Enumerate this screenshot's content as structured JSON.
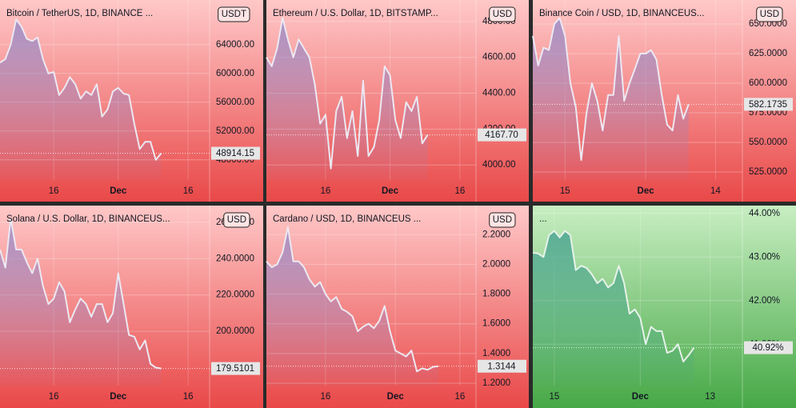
{
  "chart_data": [
    {
      "type": "line",
      "title": "Bitcoin / TetherUS, 1D, BINANCE ...",
      "currency": "USDT",
      "color": "#ece8f2",
      "area_color": "#8f86c8",
      "background": [
        "#ffc8c8",
        "#e94848"
      ],
      "ylim": [
        45200,
        70200
      ],
      "yticks": [
        {
          "value": 48000,
          "label": "48000.00"
        },
        {
          "value": 52000,
          "label": "52000.00"
        },
        {
          "value": 56000,
          "label": "56000.00"
        },
        {
          "value": 60000,
          "label": "60000.00"
        },
        {
          "value": 64000,
          "label": "64000.00"
        }
      ],
      "categories": [
        null,
        null,
        null,
        null,
        null,
        null,
        null,
        null,
        null,
        null,
        "16",
        null,
        null,
        null,
        null,
        null,
        null,
        null,
        null,
        null,
        null,
        null,
        "Dec",
        null,
        null,
        null,
        null,
        null,
        null,
        null,
        null,
        null,
        null,
        null,
        null,
        "16",
        null,
        null,
        null,
        null
      ],
      "values": [
        61500,
        62000,
        64000,
        67500,
        66500,
        64800,
        64500,
        65000,
        62000,
        60000,
        60200,
        57000,
        58000,
        59500,
        58500,
        56500,
        57500,
        57000,
        58500,
        54000,
        55000,
        57500,
        58000,
        57200,
        57000,
        53000,
        49500,
        50500,
        50500,
        48000,
        48914.15,
        null,
        null,
        null,
        null,
        null,
        null,
        null,
        null,
        null
      ]
    },
    {
      "type": "line",
      "title": "Ethereum / U.S. Dollar, 1D, BITSTAMP...",
      "currency": "USD",
      "color": "#ece8f2",
      "area_color": "#8f86c8",
      "background": [
        "#ffc8c8",
        "#e94848"
      ],
      "ylim": [
        3916,
        4920
      ],
      "yticks": [
        {
          "value": 4000,
          "label": "4000.00"
        },
        {
          "value": 4200,
          "label": "4200.00"
        },
        {
          "value": 4400,
          "label": "4400.00"
        },
        {
          "value": 4600,
          "label": "4600.00"
        },
        {
          "value": 4800,
          "label": "4800.00"
        }
      ],
      "categories": [
        null,
        null,
        null,
        null,
        null,
        null,
        null,
        null,
        null,
        null,
        null,
        "16",
        null,
        null,
        null,
        null,
        null,
        null,
        null,
        null,
        null,
        null,
        null,
        "Dec",
        null,
        null,
        null,
        null,
        null,
        null,
        null,
        null,
        null,
        null,
        null,
        null,
        "16",
        null,
        null,
        null
      ],
      "values": [
        4600,
        4550,
        4650,
        4820,
        4700,
        4600,
        4700,
        4650,
        4600,
        4450,
        4230,
        4280,
        3980,
        4300,
        4380,
        4150,
        4300,
        4050,
        4470,
        4050,
        4100,
        4250,
        4550,
        4500,
        4250,
        4150,
        4350,
        4300,
        4380,
        4120,
        4167.7,
        null,
        null,
        null,
        null,
        null,
        null,
        null,
        null,
        null
      ],
      "value_labels": [
        null,
        null,
        null,
        null,
        null,
        null,
        null,
        null,
        null,
        null,
        null,
        null,
        null,
        null,
        null,
        null,
        null,
        null,
        null,
        null,
        null,
        null,
        null,
        null,
        null,
        null,
        null,
        null,
        null,
        null,
        "4167.70",
        null,
        null,
        null,
        null,
        null,
        null,
        null,
        null,
        null
      ]
    },
    {
      "type": "line",
      "title": "Binance Coin / USD, 1D, BINANCEUS...",
      "currency": "USD",
      "color": "#ece8f2",
      "area_color": "#8f86c8",
      "background": [
        "#ffc8c8",
        "#e94848"
      ],
      "ylim": [
        518.2,
        670.3
      ],
      "yticks": [
        {
          "value": 525,
          "label": "525.0000"
        },
        {
          "value": 550,
          "label": "550.0000"
        },
        {
          "value": 575,
          "label": "575.0000"
        },
        {
          "value": 600,
          "label": "600.0000"
        },
        {
          "value": 625,
          "label": "625.0000"
        },
        {
          "value": 650,
          "label": "650.0000"
        }
      ],
      "categories": [
        null,
        null,
        null,
        null,
        null,
        null,
        "15",
        null,
        null,
        null,
        null,
        null,
        null,
        null,
        null,
        null,
        null,
        null,
        null,
        null,
        null,
        "Dec",
        null,
        null,
        null,
        null,
        null,
        null,
        null,
        null,
        null,
        null,
        null,
        null,
        "14",
        null,
        null,
        null,
        null,
        null
      ],
      "values": [
        640,
        615,
        630,
        628,
        650,
        655,
        640,
        600,
        580,
        535,
        575,
        600,
        585,
        560,
        590,
        590,
        640,
        585,
        600,
        612,
        625,
        625,
        628,
        620,
        590,
        565,
        560,
        590,
        570,
        582.1735,
        null,
        null,
        null,
        null,
        null,
        null,
        null,
        null,
        null,
        null
      ]
    },
    {
      "type": "line",
      "title": "Solana / U.S. Dollar, 1D, BINANCEUS...",
      "currency": "USD",
      "color": "#ece8f2",
      "area_color": "#8f86c8",
      "background": [
        "#ffc8c8",
        "#e94848"
      ],
      "ylim": [
        170.1,
        269.2
      ],
      "yticks": [
        {
          "value": 200,
          "label": "200.0000"
        },
        {
          "value": 220,
          "label": "220.0000"
        },
        {
          "value": 240,
          "label": "240.0000"
        },
        {
          "value": 260,
          "label": "260.0000"
        }
      ],
      "categories": [
        null,
        null,
        null,
        null,
        null,
        null,
        null,
        null,
        null,
        null,
        "16",
        null,
        null,
        null,
        null,
        null,
        null,
        null,
        null,
        null,
        null,
        null,
        "Dec",
        null,
        null,
        null,
        null,
        null,
        null,
        null,
        null,
        null,
        null,
        null,
        null,
        "16",
        null,
        null,
        null,
        null
      ],
      "values": [
        245,
        235,
        262,
        245,
        245,
        238,
        232,
        240,
        225,
        215,
        218,
        227,
        222,
        205,
        212,
        218,
        215,
        208,
        215,
        215,
        205,
        210,
        232,
        215,
        198,
        197,
        190,
        195,
        182,
        180,
        179.5101,
        null,
        null,
        null,
        null,
        null,
        null,
        null,
        null,
        null
      ]
    },
    {
      "type": "line",
      "title": "Cardano / USD, 1D, BINANCEUS ...",
      "currency": "USD",
      "color": "#ece8f2",
      "area_color": "#8f86c8",
      "background": [
        "#ffc8c8",
        "#e94848"
      ],
      "ylim": [
        1.184,
        2.395
      ],
      "yticks": [
        {
          "value": 1.2,
          "label": "1.2000"
        },
        {
          "value": 1.4,
          "label": "1.4000"
        },
        {
          "value": 1.6,
          "label": "1.6000"
        },
        {
          "value": 1.8,
          "label": "1.8000"
        },
        {
          "value": 2,
          "label": "2.0000"
        },
        {
          "value": 2.2,
          "label": "2.2000"
        }
      ],
      "categories": [
        null,
        null,
        null,
        null,
        null,
        null,
        null,
        null,
        null,
        null,
        null,
        "16",
        null,
        null,
        null,
        null,
        null,
        null,
        null,
        null,
        null,
        null,
        null,
        null,
        "Dec",
        null,
        null,
        null,
        null,
        null,
        null,
        null,
        null,
        null,
        null,
        null,
        "16",
        null,
        null,
        null
      ],
      "values": [
        2.02,
        1.98,
        2.0,
        2.08,
        2.25,
        2.02,
        2.02,
        1.98,
        1.9,
        1.85,
        1.88,
        1.8,
        1.75,
        1.78,
        1.7,
        1.68,
        1.65,
        1.55,
        1.58,
        1.6,
        1.57,
        1.62,
        1.72,
        1.55,
        1.42,
        1.4,
        1.38,
        1.42,
        1.28,
        1.3,
        1.29,
        1.31,
        1.3144,
        null,
        null,
        null,
        null,
        null,
        null,
        null
      ]
    },
    {
      "type": "line",
      "title": "...",
      "color": "#e6f2ea",
      "area_color": "#3d9c8e",
      "background": [
        "#c8eec2",
        "#46a846"
      ],
      "ylim": [
        40.05,
        44.18
      ],
      "yticks": [
        {
          "value": 41,
          "label": "41.00%"
        },
        {
          "value": 42,
          "label": "42.00%"
        },
        {
          "value": 43,
          "label": "43.00%"
        },
        {
          "value": 44,
          "label": "44.00%"
        }
      ],
      "categories": [
        null,
        null,
        null,
        null,
        "15",
        null,
        null,
        null,
        null,
        null,
        null,
        null,
        null,
        null,
        null,
        null,
        null,
        null,
        null,
        null,
        "Dec",
        null,
        null,
        null,
        null,
        null,
        null,
        null,
        null,
        null,
        null,
        null,
        null,
        "13",
        null,
        null,
        null,
        null,
        null,
        null
      ],
      "values": [
        43.1,
        43.08,
        43.0,
        43.5,
        43.6,
        43.45,
        43.6,
        43.5,
        42.7,
        42.8,
        42.75,
        42.6,
        42.4,
        42.5,
        42.3,
        42.4,
        42.8,
        42.4,
        41.7,
        41.8,
        41.6,
        41.0,
        41.4,
        41.3,
        41.3,
        40.8,
        40.85,
        41.0,
        40.6,
        40.75,
        40.92,
        null,
        null,
        null,
        null,
        null,
        null,
        null,
        null,
        null
      ],
      "value_labels": [
        null,
        null,
        null,
        null,
        null,
        null,
        null,
        null,
        null,
        null,
        null,
        null,
        null,
        null,
        null,
        null,
        null,
        null,
        null,
        null,
        null,
        null,
        null,
        null,
        null,
        null,
        null,
        null,
        null,
        null,
        "40.92%",
        null,
        null,
        null,
        null,
        null,
        null,
        null,
        null,
        null
      ]
    }
  ]
}
